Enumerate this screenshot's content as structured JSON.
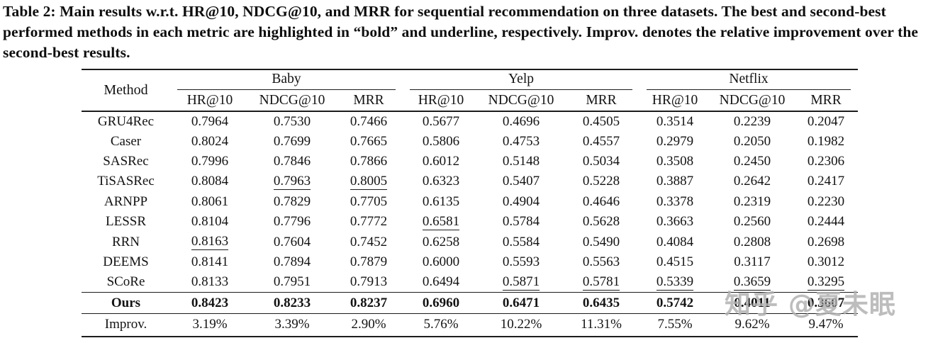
{
  "caption": "Table 2: Main results w.r.t. HR@10, NDCG@10, and MRR for sequential recommendation on three datasets. The best and second-best performed methods in each metric are highlighted in “bold” and underline, respectively. Improv. denotes the relative improvement over the second-best results.",
  "table": {
    "method_header": "Method",
    "groups": [
      {
        "label": "Baby",
        "metrics": [
          "HR@10",
          "NDCG@10",
          "MRR"
        ]
      },
      {
        "label": "Yelp",
        "metrics": [
          "HR@10",
          "NDCG@10",
          "MRR"
        ]
      },
      {
        "label": "Netflix",
        "metrics": [
          "HR@10",
          "NDCG@10",
          "MRR"
        ]
      }
    ],
    "rows": [
      {
        "method": "GRU4Rec",
        "values": [
          "0.7964",
          "0.7530",
          "0.7466",
          "0.5677",
          "0.4696",
          "0.4505",
          "0.3514",
          "0.2239",
          "0.2047"
        ],
        "underline": [],
        "bold": false,
        "rule_above": false
      },
      {
        "method": "Caser",
        "values": [
          "0.8024",
          "0.7699",
          "0.7665",
          "0.5806",
          "0.4753",
          "0.4557",
          "0.2979",
          "0.2050",
          "0.1982"
        ],
        "underline": [],
        "bold": false,
        "rule_above": false
      },
      {
        "method": "SASRec",
        "values": [
          "0.7996",
          "0.7846",
          "0.7866",
          "0.6012",
          "0.5148",
          "0.5034",
          "0.3508",
          "0.2450",
          "0.2306"
        ],
        "underline": [],
        "bold": false,
        "rule_above": false
      },
      {
        "method": "TiSASRec",
        "values": [
          "0.8084",
          "0.7963",
          "0.8005",
          "0.6323",
          "0.5407",
          "0.5228",
          "0.3887",
          "0.2642",
          "0.2417"
        ],
        "underline": [
          1,
          2
        ],
        "bold": false,
        "rule_above": false
      },
      {
        "method": "ARNPP",
        "values": [
          "0.8061",
          "0.7829",
          "0.7705",
          "0.6135",
          "0.4904",
          "0.4646",
          "0.3378",
          "0.2319",
          "0.2230"
        ],
        "underline": [],
        "bold": false,
        "rule_above": false
      },
      {
        "method": "LESSR",
        "values": [
          "0.8104",
          "0.7796",
          "0.7772",
          "0.6581",
          "0.5784",
          "0.5628",
          "0.3663",
          "0.2560",
          "0.2444"
        ],
        "underline": [
          3
        ],
        "bold": false,
        "rule_above": false
      },
      {
        "method": "RRN",
        "values": [
          "0.8163",
          "0.7604",
          "0.7452",
          "0.6258",
          "0.5584",
          "0.5490",
          "0.4084",
          "0.2808",
          "0.2698"
        ],
        "underline": [
          0
        ],
        "bold": false,
        "rule_above": false
      },
      {
        "method": "DEEMS",
        "values": [
          "0.8141",
          "0.7894",
          "0.7879",
          "0.6000",
          "0.5593",
          "0.5563",
          "0.4515",
          "0.3117",
          "0.3012"
        ],
        "underline": [],
        "bold": false,
        "rule_above": false
      },
      {
        "method": "SCoRe",
        "values": [
          "0.8133",
          "0.7951",
          "0.7913",
          "0.6494",
          "0.5871",
          "0.5781",
          "0.5339",
          "0.3659",
          "0.3295"
        ],
        "underline": [
          4,
          5,
          6,
          7,
          8
        ],
        "bold": false,
        "rule_above": false
      },
      {
        "method": "Ours",
        "values": [
          "0.8423",
          "0.8233",
          "0.8237",
          "0.6960",
          "0.6471",
          "0.6435",
          "0.5742",
          "0.4011",
          "0.3607"
        ],
        "underline": [],
        "bold": true,
        "rule_above": true
      },
      {
        "method": "Improv.",
        "values": [
          "3.19%",
          "3.39%",
          "2.90%",
          "5.76%",
          "10.22%",
          "11.31%",
          "7.55%",
          "9.62%",
          "9.47%"
        ],
        "underline": [],
        "bold": false,
        "rule_above": true
      }
    ]
  },
  "watermark": {
    "text": "知乎 @夏未眠",
    "color": "#b2b2b2"
  },
  "colors": {
    "text": "#131313",
    "rule": "#1c1c1c",
    "background": "#ffffff"
  }
}
